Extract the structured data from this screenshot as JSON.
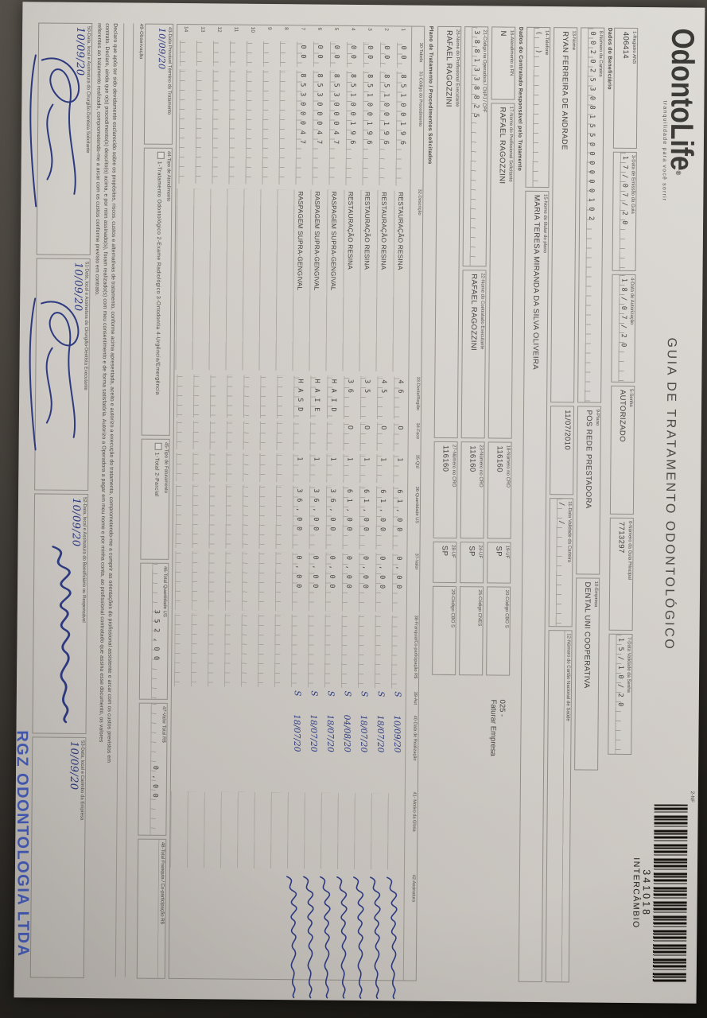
{
  "header": {
    "logo": "OdontoLife",
    "logo_reg": "®",
    "tagline": "tranquilidade para você sorrir",
    "title": "GUIA DE TRATAMENTO ODONTOLÓGICO",
    "nf_label": "2-NF",
    "barcode_number": "341018",
    "barcode_text": "INTERCÂMBIO"
  },
  "guia": {
    "registro": {
      "label": "1-Registro ANS",
      "value": "406414"
    },
    "emissao": {
      "label": "3-Data de Emissão da Guia",
      "value": "17/07/20"
    },
    "autorizacao": {
      "label": "4-Data de Autorização",
      "value": "18/07/20"
    },
    "senha": {
      "label": "5-Senha",
      "value": "AUTORIZADO"
    },
    "guia_principal": {
      "label": "6-Número da Guia Principal",
      "value": "7713297"
    },
    "validade_senha": {
      "label": "7-Data Validade da Senha",
      "value": "15/10/20"
    }
  },
  "beneficiario": {
    "section": "Dados do Beneficiário",
    "carteira": {
      "label": "8-Número da Carteira",
      "value": "002025308155000000102"
    },
    "plano": {
      "label": "9-Plano",
      "value": "POS REDE PRESTADORA"
    },
    "empresa": {
      "label": "10-Empresa",
      "value": "DENTAL UNI COOPERATIVA"
    },
    "nome": {
      "label": "13-Nome",
      "value": "RYAN FERREIRA DE ANDRADE"
    },
    "nascimento": "11/07/2010",
    "validade_carteira": {
      "label": "11-Data Validade da Carteira",
      "value": "  /  /  "
    },
    "cartao_sus": {
      "label": "12-Número do Cartão Nacional de Saúde",
      "value": ""
    },
    "telefone": {
      "label": "14-Telefone",
      "value": "(    )"
    },
    "titular": {
      "label": "15-Nome do titular do plano",
      "value": "MARIA TERESA MIRANDA DA SILVA OLIVEIRA"
    }
  },
  "contratado": {
    "section": "Dados do Contratado Responsável pelo Tratamento",
    "rn": {
      "label": "16-Atendimento a RN",
      "value": "N"
    },
    "solicitante": {
      "label": "17-Nome do Profissional Solicitante",
      "value": "RAFAEL RAGOZZINI"
    },
    "cro_solicitante": {
      "label": "18-Número no CRO",
      "value": "116160"
    },
    "uf_solicitante": {
      "label": "19-UF",
      "value": "SP"
    },
    "cbo_solicitante": {
      "label": "20-Código CBO S",
      "value": ""
    },
    "faturar_nota_1": "025 -",
    "faturar_nota_2": "Faturar Empresa",
    "codigo_operadora": {
      "label": "21-Código na Operadora / CNPJ / CPF",
      "value": "3881338825"
    },
    "executante": {
      "label": "22-Nome do Contratado Executante",
      "value": "RAFAEL RAGOZZINI"
    },
    "cro_executante": {
      "label": "23-Número no CRO",
      "value": "116160"
    },
    "uf_executante": {
      "label": "24-UF",
      "value": "SP"
    },
    "cnes": {
      "label": "25-Código CNES",
      "value": ""
    },
    "prof_executante": {
      "label": "26-Nome do Profissional Executante",
      "value": "RAFAEL RAGOZZINI"
    },
    "cro_prof": {
      "label": "27-Número no CRO",
      "value": "116160"
    },
    "uf_prof": {
      "label": "28-UF",
      "value": "SP"
    },
    "cbo_prof": {
      "label": "29-Código CBO S",
      "value": ""
    }
  },
  "tratamento": {
    "section": "Plano de Tratamento / Procedimentos Solicitados",
    "headers": {
      "tabela": "30-Tabela",
      "codigo": "31-Código do Procedimento",
      "descricao": "32-Descrição",
      "dente": "33-Dente/Região",
      "face": "34-Face",
      "qtd": "35-Qtd",
      "us": "36-Quantidade US",
      "valor": "37-Valor",
      "franquia": "38-Franquia/Co-participação R$",
      "aut": "39-Aut",
      "data": "40-Data de Realização",
      "glosa": "41- Motivo da Glosa",
      "assinatura": "42-Assinatura"
    },
    "rows": [
      {
        "n": "1",
        "tabela": "00",
        "codigo": "85100196",
        "descricao": "RESTAURAÇÃO RESINA",
        "dente": "46",
        "face": "O",
        "qtd": "1",
        "us": "61,00",
        "valor": "0,00",
        "franquia": "",
        "aut": "S",
        "data": "10/09/20",
        "glosa": "",
        "signed": true
      },
      {
        "n": "2",
        "tabela": "00",
        "codigo": "85100196",
        "descricao": "RESTAURAÇÃO RESINA",
        "dente": "45",
        "face": "O",
        "qtd": "1",
        "us": "61,00",
        "valor": "0,00",
        "franquia": "",
        "aut": "S",
        "data": "18/07/20",
        "glosa": "",
        "signed": true
      },
      {
        "n": "3",
        "tabela": "00",
        "codigo": "85100196",
        "descricao": "RESTAURAÇÃO RESINA",
        "dente": "35",
        "face": "O",
        "qtd": "1",
        "us": "61,00",
        "valor": "0,00",
        "franquia": "",
        "aut": "S",
        "data": "18/07/20",
        "glosa": "",
        "signed": true
      },
      {
        "n": "4",
        "tabela": "00",
        "codigo": "85100196",
        "descricao": "RESTAURAÇÃO RESINA",
        "dente": "36",
        "face": "O",
        "qtd": "1",
        "us": "61,00",
        "valor": "0,00",
        "franquia": "",
        "aut": "S",
        "data": "04/08/20",
        "glosa": "",
        "signed": true
      },
      {
        "n": "5",
        "tabela": "00",
        "codigo": "85300047",
        "descricao": "RASPAGEM SUPRA-GENGIVAL",
        "dente": "HAID",
        "face": "",
        "qtd": "1",
        "us": "36,00",
        "valor": "0,00",
        "franquia": "",
        "aut": "S",
        "data": "18/07/20",
        "glosa": "",
        "signed": true
      },
      {
        "n": "6",
        "tabela": "00",
        "codigo": "85300047",
        "descricao": "RASPAGEM SUPRA-GENGIVAL",
        "dente": "HAIE",
        "face": "",
        "qtd": "1",
        "us": "36,00",
        "valor": "0,00",
        "franquia": "",
        "aut": "S",
        "data": "18/07/20",
        "glosa": "",
        "signed": true
      },
      {
        "n": "7",
        "tabela": "00",
        "codigo": "85300047",
        "descricao": "RASPAGEM SUPRA-GENGIVAL",
        "dente": "HASD",
        "face": "",
        "qtd": "1",
        "us": "36,00",
        "valor": "0,00",
        "franquia": "",
        "aut": "S",
        "data": "18/07/20",
        "glosa": "",
        "signed": true
      },
      {
        "n": "8",
        "tabela": "",
        "codigo": "",
        "descricao": "",
        "dente": "",
        "face": "",
        "qtd": "",
        "us": "",
        "valor": "",
        "franquia": "",
        "aut": "",
        "data": "",
        "glosa": "",
        "signed": false
      },
      {
        "n": "9",
        "tabela": "",
        "codigo": "",
        "descricao": "",
        "dente": "",
        "face": "",
        "qtd": "",
        "us": "",
        "valor": "",
        "franquia": "",
        "aut": "",
        "data": "",
        "glosa": "",
        "signed": false
      },
      {
        "n": "10",
        "tabela": "",
        "codigo": "",
        "descricao": "",
        "dente": "",
        "face": "",
        "qtd": "",
        "us": "",
        "valor": "",
        "franquia": "",
        "aut": "",
        "data": "",
        "glosa": "",
        "signed": false
      },
      {
        "n": "11",
        "tabela": "",
        "codigo": "",
        "descricao": "",
        "dente": "",
        "face": "",
        "qtd": "",
        "us": "",
        "valor": "",
        "franquia": "",
        "aut": "",
        "data": "",
        "glosa": "",
        "signed": false
      },
      {
        "n": "12",
        "tabela": "",
        "codigo": "",
        "descricao": "",
        "dente": "",
        "face": "",
        "qtd": "",
        "us": "",
        "valor": "",
        "franquia": "",
        "aut": "",
        "data": "",
        "glosa": "",
        "signed": false
      },
      {
        "n": "13",
        "tabela": "",
        "codigo": "",
        "descricao": "",
        "dente": "",
        "face": "",
        "qtd": "",
        "us": "",
        "valor": "",
        "franquia": "",
        "aut": "",
        "data": "",
        "glosa": "",
        "signed": false
      },
      {
        "n": "14",
        "tabela": "",
        "codigo": "",
        "descricao": "",
        "dente": "",
        "face": "",
        "qtd": "",
        "us": "",
        "valor": "",
        "franquia": "",
        "aut": "",
        "data": "",
        "glosa": "",
        "signed": false
      }
    ]
  },
  "rodape": {
    "termino": {
      "label": "43-Data Provável Término do Tratamento",
      "value": "10/09/20"
    },
    "tipo_atendimento": {
      "label": "44-Tipo de Atendimento",
      "options": "1-Tratamento Odontológico   2-Exame Radiológico   3-Ortodontia   4-Urgência/Emergência"
    },
    "tipo_faturamento": {
      "label": "45-Tipo de Faturamento",
      "options": "1-Total   2-Parcial"
    },
    "total_us": {
      "label": "46-Total Quantidade US",
      "value": "352,00"
    },
    "valor_total": {
      "label": "47-Valor Total R$",
      "value": "0,00"
    },
    "total_franquia": {
      "label": "48-Total Franquia / Co-participação R$",
      "value": ""
    },
    "observacao_label": "49-Observação",
    "declaracao": [
      "Declaro que após ter sido devidamente esclarecido sobre os propósitos, riscos, custos e alternativas de tratamento, conforme acima apresentada, aceito e autorizo a execução do tratamento, comprometendo-me a cumprir as orientações do profissional assistente e arcar com os custos previstos em",
      "contrato. Declaro, ainda que o(s) procedimento(s) descrito(s) acima, e por mim assinado(s), foram realizado(s) com meu consentimento e de forma satisfatória. Autorizo a Operadora a pagar em meu nome e por minha conta, ao profissional contratado que assina esse documento, os valores",
      "referentes ao tratamento realizado, comprometendo-me a arcar com os custos conforme previsto em contrato."
    ],
    "assinaturas": [
      {
        "label": "50-Data, local e Assinatura do Cirurgião-Dentista Solicitante",
        "data": "10/09/20"
      },
      {
        "label": "51-Data, local e Assinatura do Cirurgião-Dentista Executante",
        "data": "10/09/20"
      },
      {
        "label": "52-Data, local e Assinatura do Beneficiário ou Responsável",
        "data": "10/09/20"
      },
      {
        "label": "53-Data, local e Carimbo da Empresa",
        "data": "10/09/20"
      }
    ],
    "carimbo": "RGZ ODONTOLOGIA LTDA"
  },
  "colors": {
    "ink_blue": "#2d3a80",
    "stamp_blue": "#3a53b8",
    "paper": "#d6d2cd",
    "print": "#3d3c39"
  }
}
